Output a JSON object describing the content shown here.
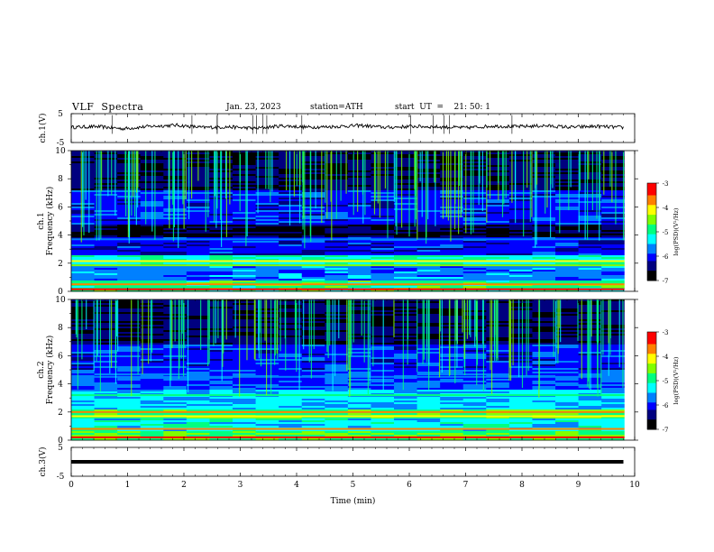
{
  "header": {
    "title": "VLF  Spectra",
    "date": "Jan. 23, 2023",
    "station": "station=ATH",
    "start": "start  UT  =    21: 50: 1"
  },
  "chart_data": [
    {
      "type": "line",
      "panel": "ch1-waveform",
      "ylabel": "ch.1(V)",
      "ylim": [
        -5,
        5
      ],
      "yticks": [
        "5",
        "-5"
      ],
      "x_range_min": [
        0,
        9.8
      ],
      "series": [
        {
          "values": [
            0.3,
            0.5,
            -0.2,
            0.6,
            1.0,
            0.2,
            0.4,
            -0.1,
            0.8,
            0.3,
            0.5,
            0.9,
            0.2,
            0.6,
            0.4,
            0.1,
            0.7,
            0.5,
            0.8,
            0.3,
            0.6,
            0.2
          ]
        }
      ]
    },
    {
      "type": "heatmap",
      "panel": "ch1-spectrogram",
      "ylabel": "ch.1 Frequency  (kHz)",
      "ylim": [
        0,
        10
      ],
      "yticks": [
        "0",
        "2",
        "4",
        "6",
        "8",
        "10"
      ],
      "colorbar": {
        "label": "log(PSD)(V²/Hz)",
        "range": [
          -7,
          -3
        ],
        "ticks": [
          "-3",
          "-4",
          "-5",
          "-6",
          "-7"
        ]
      }
    },
    {
      "type": "heatmap",
      "panel": "ch2-spectrogram",
      "ylabel": "ch.2 Frequency  (kHz)",
      "ylim": [
        0,
        10
      ],
      "yticks": [
        "0",
        "2",
        "4",
        "6",
        "8",
        "10"
      ],
      "colorbar": {
        "label": "log(PSD)(V²/Hz)",
        "range": [
          -7,
          -3
        ],
        "ticks": [
          "-3",
          "-4",
          "-5",
          "-6",
          "-7"
        ]
      }
    },
    {
      "type": "line",
      "panel": "ch3-waveform",
      "ylabel": "ch.3(V)",
      "ylim": [
        -5,
        5
      ],
      "yticks": [
        "5",
        "-5"
      ],
      "x_range_min": [
        0,
        9.8
      ],
      "series": [
        {
          "values": [
            0,
            0
          ]
        }
      ]
    }
  ],
  "xaxis": {
    "label": "Time  (min)",
    "ticks": [
      "0",
      "1",
      "2",
      "3",
      "4",
      "5",
      "6",
      "7",
      "8",
      "9",
      "10"
    ]
  },
  "colors": {
    "colormap": [
      "#000000",
      "#00007f",
      "#0000ff",
      "#0080ff",
      "#00ffff",
      "#00ff80",
      "#80ff00",
      "#ffff00",
      "#ff8000",
      "#ff0000",
      "#ffffff"
    ]
  }
}
